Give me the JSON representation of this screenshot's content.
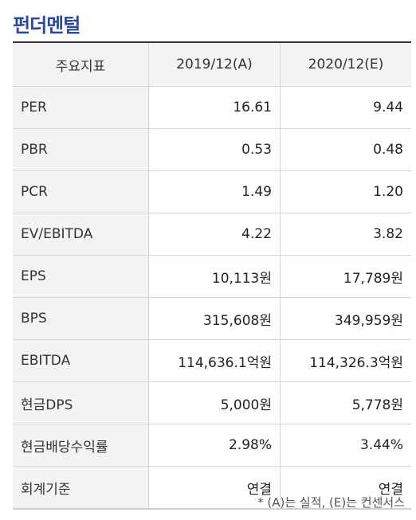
{
  "title": "펀더멘털",
  "headers": [
    "주요지표",
    "2019/12(A)",
    "2020/12(E)"
  ],
  "rows": [
    {
      "label": "PER",
      "v2019": "16.61",
      "v2020": "9.44"
    },
    {
      "label": "PBR",
      "v2019": "0.53",
      "v2020": "0.48"
    },
    {
      "label": "PCR",
      "v2019": "1.49",
      "v2020": "1.20"
    },
    {
      "label": "EV/EBITDA",
      "v2019": "4.22",
      "v2020": "3.82"
    },
    {
      "label": "EPS",
      "v2019": "10,113원",
      "v2020": "17,789원"
    },
    {
      "label": "BPS",
      "v2019": "315,608원",
      "v2020": "349,959원"
    },
    {
      "label": "EBITDA",
      "v2019": "114,636.1억원",
      "v2020": "114,326.3억원"
    },
    {
      "label": "현금DPS",
      "v2019": "5,000원",
      "v2020": "5,778원"
    },
    {
      "label": "현금배당수익률",
      "v2019": "2.98%",
      "v2020": "3.44%"
    },
    {
      "label": "회계기준",
      "v2019": "연결",
      "v2020": "연결"
    }
  ],
  "note": "* (A)는 실적, (E)는 컨센서스"
}
